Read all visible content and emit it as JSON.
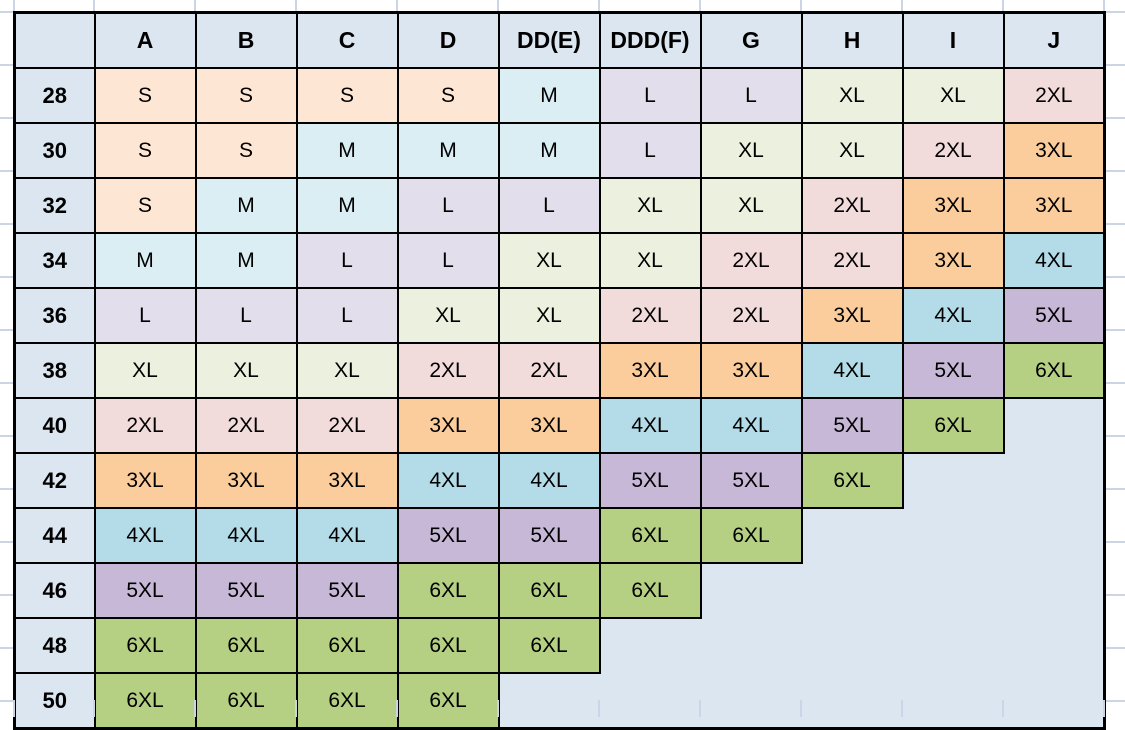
{
  "chart_data": {
    "type": "table",
    "columns": [
      "A",
      "B",
      "C",
      "D",
      "DD(E)",
      "DDD(F)",
      "G",
      "H",
      "I",
      "J"
    ],
    "row_header_values": [
      "28",
      "30",
      "32",
      "34",
      "36",
      "38",
      "40",
      "42",
      "44",
      "46",
      "48",
      "50"
    ],
    "rows": [
      {
        "band": "28",
        "sizes": [
          "S",
          "S",
          "S",
          "S",
          "M",
          "L",
          "L",
          "XL",
          "XL",
          "2XL"
        ]
      },
      {
        "band": "30",
        "sizes": [
          "S",
          "S",
          "M",
          "M",
          "M",
          "L",
          "XL",
          "XL",
          "2XL",
          "3XL"
        ]
      },
      {
        "band": "32",
        "sizes": [
          "S",
          "M",
          "M",
          "L",
          "L",
          "XL",
          "XL",
          "2XL",
          "3XL",
          "3XL"
        ]
      },
      {
        "band": "34",
        "sizes": [
          "M",
          "M",
          "L",
          "L",
          "XL",
          "XL",
          "2XL",
          "2XL",
          "3XL",
          "4XL"
        ]
      },
      {
        "band": "36",
        "sizes": [
          "L",
          "L",
          "L",
          "XL",
          "XL",
          "2XL",
          "2XL",
          "3XL",
          "4XL",
          "5XL"
        ]
      },
      {
        "band": "38",
        "sizes": [
          "XL",
          "XL",
          "XL",
          "2XL",
          "2XL",
          "3XL",
          "3XL",
          "4XL",
          "5XL",
          "6XL"
        ]
      },
      {
        "band": "40",
        "sizes": [
          "2XL",
          "2XL",
          "2XL",
          "3XL",
          "3XL",
          "4XL",
          "4XL",
          "5XL",
          "6XL",
          ""
        ]
      },
      {
        "band": "42",
        "sizes": [
          "3XL",
          "3XL",
          "3XL",
          "4XL",
          "4XL",
          "5XL",
          "5XL",
          "6XL",
          "",
          ""
        ]
      },
      {
        "band": "44",
        "sizes": [
          "4XL",
          "4XL",
          "4XL",
          "5XL",
          "5XL",
          "6XL",
          "6XL",
          "",
          "",
          ""
        ]
      },
      {
        "band": "46",
        "sizes": [
          "5XL",
          "5XL",
          "5XL",
          "6XL",
          "6XL",
          "6XL",
          "",
          "",
          "",
          ""
        ]
      },
      {
        "band": "48",
        "sizes": [
          "6XL",
          "6XL",
          "6XL",
          "6XL",
          "6XL",
          "",
          "",
          "",
          "",
          ""
        ]
      },
      {
        "band": "50",
        "sizes": [
          "6XL",
          "6XL",
          "6XL",
          "6XL",
          "",
          "",
          "",
          "",
          "",
          ""
        ]
      }
    ]
  },
  "colors": {
    "S": "#FDE6D3",
    "M": "#DAEEF3",
    "L": "#E2DEEC",
    "XL": "#EBF1DE",
    "2XL": "#F2DCDB",
    "3XL": "#FBCD9C",
    "4XL": "#B3DCE8",
    "5XL": "#C6B8D6",
    "6XL": "#B5CF83",
    "header_fill": "#DCE6F1",
    "empty_fill": "#DCE6F1",
    "cell_border": "#000000",
    "sheet_gridline": "#CCD5E5"
  }
}
